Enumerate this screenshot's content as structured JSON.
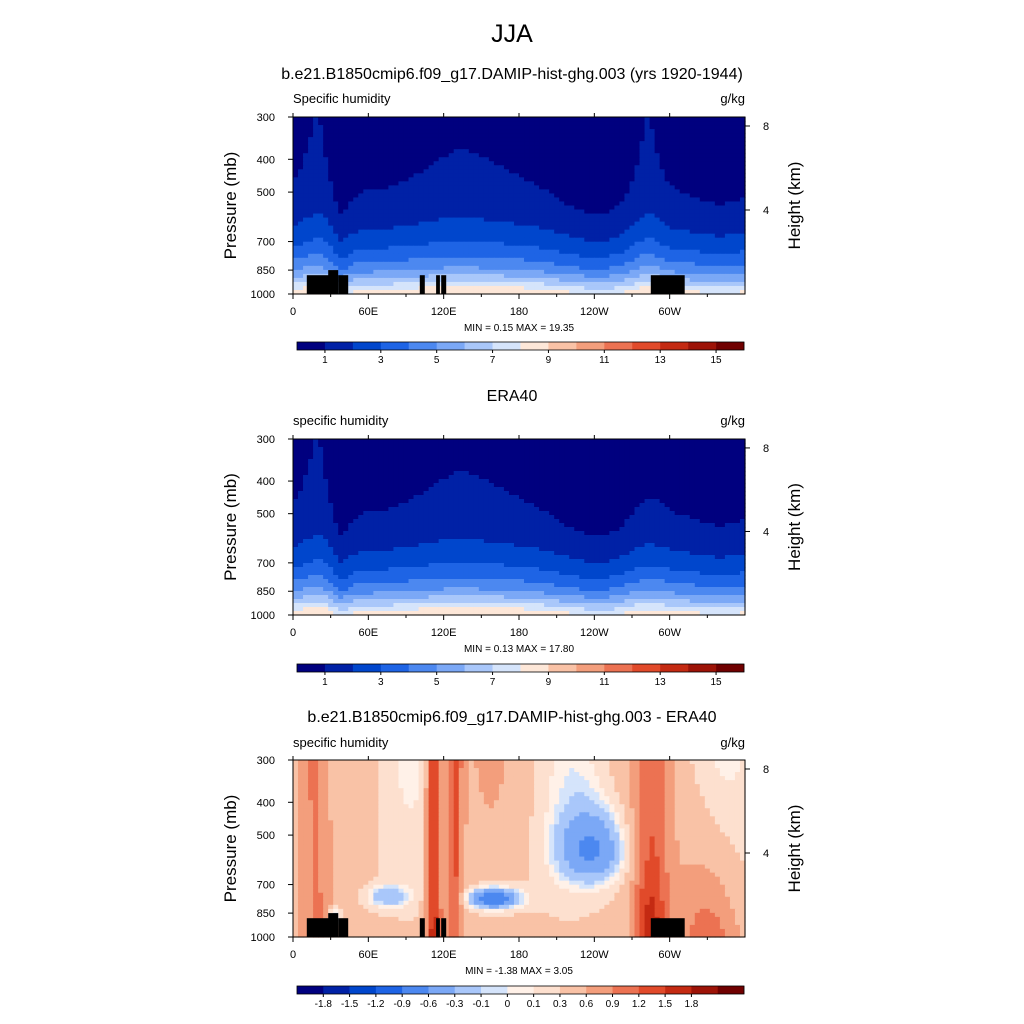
{
  "figure": {
    "title": "JJA",
    "colors": {
      "seq": [
        "#00007f",
        "#0021a6",
        "#0046cc",
        "#1e64e5",
        "#4c88f0",
        "#7ba8f6",
        "#a9c7fa",
        "#d5e4fb",
        "#fde7d8",
        "#f9c2a6",
        "#f39e7c",
        "#ec7252",
        "#e14a2a",
        "#c42a12",
        "#9d1307",
        "#700000"
      ],
      "diff": [
        "#00007f",
        "#0021a6",
        "#0046cc",
        "#1e64e5",
        "#4c88f0",
        "#7ba8f6",
        "#a9c7fa",
        "#d5e4fb",
        "#fff1e8",
        "#fde0cf",
        "#f9c2a6",
        "#f39e7c",
        "#ec7252",
        "#e14a2a",
        "#c42a12",
        "#9d1307",
        "#700000"
      ]
    }
  },
  "chart_data": [
    {
      "type": "heatmap",
      "title": "b.e21.B1850cmip6.f09_g17.DAMIP-hist-ghg.003 (yrs 1920-1944)",
      "left_label": "Specific humidity",
      "right_label": "g/kg",
      "ylabel": "Pressure (mb)",
      "ylabel_right": "Height (km)",
      "x_ticks": [
        "0",
        "60E",
        "120E",
        "180",
        "120W",
        "60W"
      ],
      "x_tick_values": [
        0,
        60,
        120,
        180,
        240,
        300
      ],
      "xlim": [
        0,
        360
      ],
      "y_ticks": [
        "300",
        "400",
        "500",
        "700",
        "850",
        "1000"
      ],
      "y_tick_values": [
        300,
        400,
        500,
        700,
        850,
        1000
      ],
      "ylim": [
        300,
        1000
      ],
      "y_scale": "log",
      "y_right_ticks": [
        "8",
        "4"
      ],
      "y_right_values": [
        8,
        4
      ],
      "stats": "MIN =   0.15  MAX =  19.35",
      "min": 0.15,
      "max": 19.35,
      "colorbar": {
        "type": "sequential",
        "labels": [
          "1",
          "3",
          "5",
          "7",
          "9",
          "11",
          "13",
          "15"
        ],
        "levels": [
          1,
          3,
          5,
          7,
          9,
          11,
          13,
          15
        ]
      },
      "masked_terrain": true
    },
    {
      "type": "heatmap",
      "title": "ERA40",
      "left_label": "specific humidity",
      "right_label": "g/kg",
      "ylabel": "Pressure (mb)",
      "ylabel_right": "Height (km)",
      "x_ticks": [
        "0",
        "60E",
        "120E",
        "180",
        "120W",
        "60W"
      ],
      "x_tick_values": [
        0,
        60,
        120,
        180,
        240,
        300
      ],
      "xlim": [
        0,
        360
      ],
      "y_ticks": [
        "300",
        "400",
        "500",
        "700",
        "850",
        "1000"
      ],
      "y_tick_values": [
        300,
        400,
        500,
        700,
        850,
        1000
      ],
      "ylim": [
        300,
        1000
      ],
      "y_scale": "log",
      "y_right_ticks": [
        "8",
        "4"
      ],
      "y_right_values": [
        8,
        4
      ],
      "stats": "MIN =   0.13  MAX =  17.80",
      "min": 0.13,
      "max": 17.8,
      "colorbar": {
        "type": "sequential",
        "labels": [
          "1",
          "3",
          "5",
          "7",
          "9",
          "11",
          "13",
          "15"
        ],
        "levels": [
          1,
          3,
          5,
          7,
          9,
          11,
          13,
          15
        ]
      },
      "masked_terrain": false
    },
    {
      "type": "heatmap",
      "title": "b.e21.B1850cmip6.f09_g17.DAMIP-hist-ghg.003 - ERA40",
      "left_label": "specific humidity",
      "right_label": "g/kg",
      "ylabel": "Pressure (mb)",
      "ylabel_right": "Height (km)",
      "x_ticks": [
        "0",
        "60E",
        "120E",
        "180",
        "120W",
        "60W"
      ],
      "x_tick_values": [
        0,
        60,
        120,
        180,
        240,
        300
      ],
      "xlim": [
        0,
        360
      ],
      "y_ticks": [
        "300",
        "400",
        "500",
        "700",
        "850",
        "1000"
      ],
      "y_tick_values": [
        300,
        400,
        500,
        700,
        850,
        1000
      ],
      "ylim": [
        300,
        1000
      ],
      "y_scale": "log",
      "y_right_ticks": [
        "8",
        "4"
      ],
      "y_right_values": [
        8,
        4
      ],
      "stats": "MIN =  -1.38  MAX =   3.05",
      "min": -1.38,
      "max": 3.05,
      "colorbar": {
        "type": "diverging",
        "labels": [
          "-1.8",
          "-1.5",
          "-1.2",
          "-0.9",
          "-0.6",
          "-0.3",
          "-0.1",
          "0",
          "0.1",
          "0.3",
          "0.6",
          "0.9",
          "1.2",
          "1.5",
          "1.8"
        ],
        "levels": [
          -1.8,
          -1.5,
          -1.2,
          -0.9,
          -0.6,
          -0.3,
          -0.1,
          0,
          0.1,
          0.3,
          0.6,
          0.9,
          1.2,
          1.5,
          1.8
        ]
      },
      "masked_terrain": true
    }
  ]
}
